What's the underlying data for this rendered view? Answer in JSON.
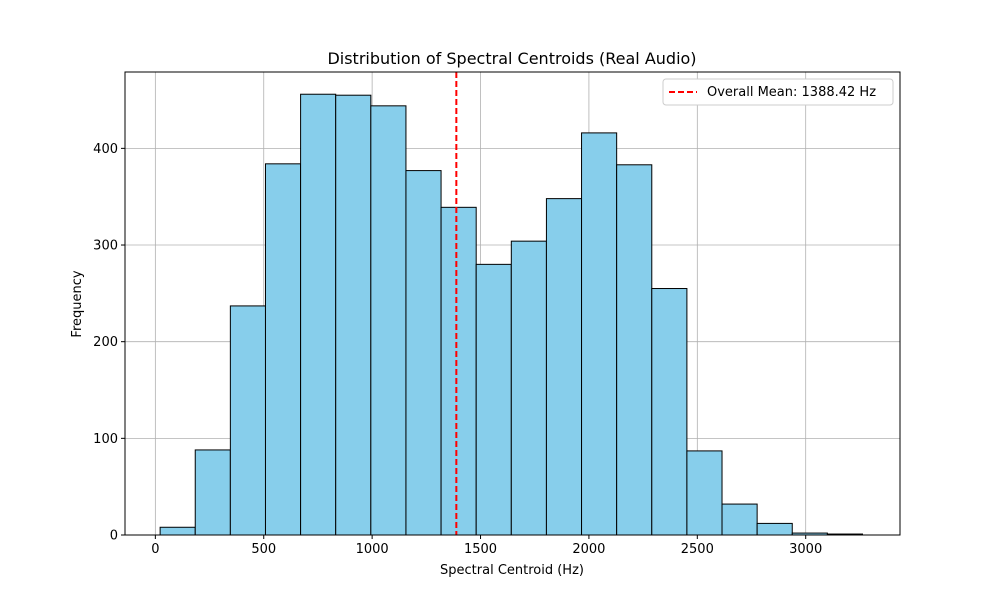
{
  "chart_data": {
    "type": "bar",
    "title": "Distribution of Spectral Centroids (Real Audio)",
    "xlabel": "Spectral Centroid (Hz)",
    "ylabel": "Frequency",
    "xlim": [
      -140,
      3435
    ],
    "ylim": [
      0,
      479
    ],
    "xticks": [
      0,
      500,
      1000,
      1500,
      2000,
      2500,
      3000
    ],
    "yticks": [
      0,
      100,
      200,
      300,
      400
    ],
    "grid": true,
    "bar_color": "#87ceeb",
    "bar_edge_color": "#000000",
    "mean_line_color": "#ff0000",
    "bin_edges": [
      22,
      184,
      346,
      508,
      670,
      832,
      994,
      1156,
      1318,
      1480,
      1642,
      1804,
      1966,
      2128,
      2290,
      2452,
      2614,
      2776,
      2938,
      3100,
      3262
    ],
    "values": [
      8,
      88,
      237,
      384,
      456,
      455,
      444,
      377,
      339,
      280,
      304,
      348,
      416,
      383,
      255,
      87,
      32,
      12,
      2,
      1
    ],
    "mean": 1388.42,
    "legend": {
      "position": "top-right",
      "entries": [
        {
          "label": "Overall Mean: 1388.42 Hz",
          "style": "dashed",
          "color": "#ff0000"
        }
      ]
    }
  }
}
